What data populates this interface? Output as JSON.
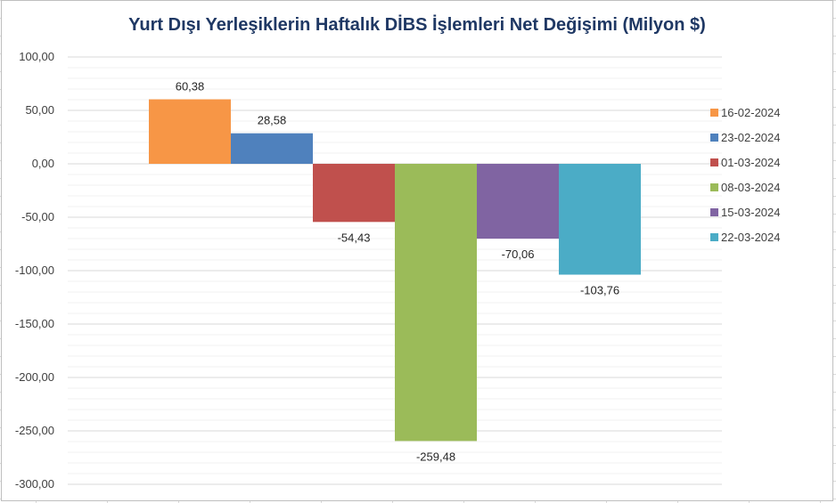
{
  "chart_data": {
    "type": "bar",
    "title": "Yurt Dışı Yerleşiklerin Haftalık DİBS İşlemleri Net Değişimi (Milyon $)",
    "xlabel": "",
    "ylabel": "",
    "ylim": [
      -300,
      100
    ],
    "yticks": [
      "100,00",
      "50,00",
      "0,00",
      "-50,00",
      "-100,00",
      "-150,00",
      "-200,00",
      "-250,00",
      "-300,00"
    ],
    "ytick_values": [
      100,
      50,
      0,
      -50,
      -100,
      -150,
      -200,
      -250,
      -300
    ],
    "grid": true,
    "legend_position": "right",
    "series": [
      {
        "name": "16-02-2024",
        "value": 60.38,
        "label": "60,38",
        "color": "#f79646"
      },
      {
        "name": "23-02-2024",
        "value": 28.58,
        "label": "28,58",
        "color": "#4f81bd"
      },
      {
        "name": "01-03-2024",
        "value": -54.43,
        "label": "-54,43",
        "color": "#c0504d"
      },
      {
        "name": "08-03-2024",
        "value": -259.48,
        "label": "-259,48",
        "color": "#9bbb59"
      },
      {
        "name": "15-03-2024",
        "value": -70.06,
        "label": "-70,06",
        "color": "#8064a2"
      },
      {
        "name": "22-03-2024",
        "value": -103.76,
        "label": "-103,76",
        "color": "#4bacc6"
      }
    ]
  }
}
